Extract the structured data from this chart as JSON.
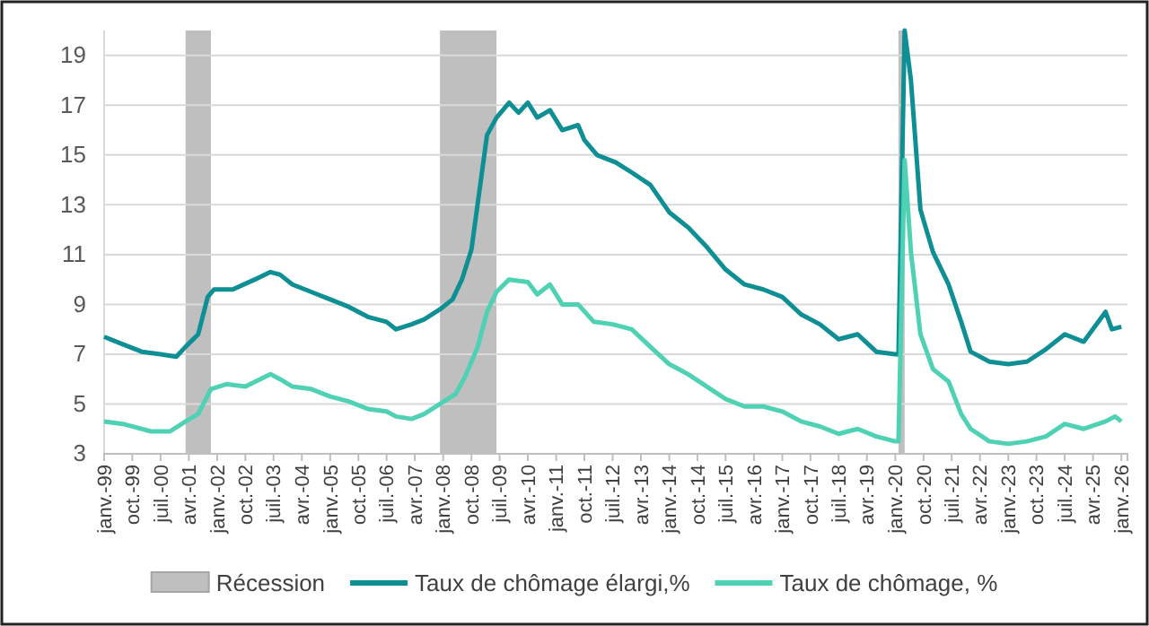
{
  "chart_data": {
    "type": "line",
    "xlim": [
      "1999-01",
      "2026-03"
    ],
    "ylim": [
      3,
      20
    ],
    "yticks": [
      3,
      5,
      7,
      9,
      11,
      13,
      15,
      17,
      19
    ],
    "grid": "y",
    "legend": "bottom",
    "xticks": [
      {
        "value": "1999-01",
        "label": "janv.-99"
      },
      {
        "value": "1999-10",
        "label": "oct.-99"
      },
      {
        "value": "2000-07",
        "label": "juil.-00"
      },
      {
        "value": "2001-04",
        "label": "avr.-01"
      },
      {
        "value": "2002-01",
        "label": "janv.-02"
      },
      {
        "value": "2002-10",
        "label": "oct.-02"
      },
      {
        "value": "2003-07",
        "label": "juil.-03"
      },
      {
        "value": "2004-04",
        "label": "avr.-04"
      },
      {
        "value": "2005-01",
        "label": "janv.-05"
      },
      {
        "value": "2005-10",
        "label": "oct.-05"
      },
      {
        "value": "2006-07",
        "label": "juil.-06"
      },
      {
        "value": "2007-04",
        "label": "avr.-07"
      },
      {
        "value": "2008-01",
        "label": "janv.-08"
      },
      {
        "value": "2008-10",
        "label": "oct.-08"
      },
      {
        "value": "2009-07",
        "label": "juil.-09"
      },
      {
        "value": "2010-04",
        "label": "avr.-10"
      },
      {
        "value": "2011-01",
        "label": "janv.-11"
      },
      {
        "value": "2011-10",
        "label": "oct.-11"
      },
      {
        "value": "2012-07",
        "label": "juil.-12"
      },
      {
        "value": "2013-04",
        "label": "avr.-13"
      },
      {
        "value": "2014-01",
        "label": "janv.-14"
      },
      {
        "value": "2014-10",
        "label": "oct.-14"
      },
      {
        "value": "2015-07",
        "label": "juil.-15"
      },
      {
        "value": "2016-04",
        "label": "avr.-16"
      },
      {
        "value": "2017-01",
        "label": "janv.-17"
      },
      {
        "value": "2017-10",
        "label": "oct.-17"
      },
      {
        "value": "2018-07",
        "label": "juil.-18"
      },
      {
        "value": "2019-04",
        "label": "avr.-19"
      },
      {
        "value": "2020-01",
        "label": "janv.-20"
      },
      {
        "value": "2020-10",
        "label": "oct.-20"
      },
      {
        "value": "2021-07",
        "label": "juil.-21"
      },
      {
        "value": "2022-04",
        "label": "avr.-22"
      },
      {
        "value": "2023-01",
        "label": "janv.-23"
      },
      {
        "value": "2023-10",
        "label": "oct.-23"
      },
      {
        "value": "2024-07",
        "label": "juil.-24"
      },
      {
        "value": "2025-04",
        "label": "avr.-25"
      },
      {
        "value": "2026-01",
        "label": "janv.-26"
      }
    ],
    "bands": [
      {
        "axis": "x",
        "from": "2001-03",
        "to": "2001-11",
        "label": "Récession",
        "color": "#bfbfbf"
      },
      {
        "axis": "x",
        "from": "2007-12",
        "to": "2009-06",
        "color": "#bfbfbf"
      },
      {
        "axis": "x",
        "from": "2020-02",
        "to": "2020-04",
        "color": "#bfbfbf"
      }
    ],
    "series": [
      {
        "name": "Taux de chômage élargi,%",
        "color": "#0e8f94",
        "x": [
          "1999-01",
          "1999-07",
          "2000-01",
          "2000-07",
          "2000-12",
          "2001-03",
          "2001-07",
          "2001-10",
          "2001-12",
          "2002-06",
          "2003-01",
          "2003-06",
          "2003-09",
          "2004-01",
          "2004-07",
          "2005-01",
          "2005-07",
          "2006-01",
          "2006-07",
          "2006-10",
          "2007-03",
          "2007-07",
          "2007-12",
          "2008-04",
          "2008-07",
          "2008-10",
          "2009-01",
          "2009-03",
          "2009-06",
          "2009-10",
          "2010-01",
          "2010-04",
          "2010-07",
          "2010-11",
          "2011-03",
          "2011-08",
          "2011-10",
          "2012-02",
          "2012-08",
          "2013-01",
          "2013-07",
          "2014-01",
          "2014-07",
          "2015-01",
          "2015-07",
          "2016-01",
          "2016-07",
          "2017-01",
          "2017-07",
          "2018-01",
          "2018-07",
          "2019-01",
          "2019-07",
          "2020-01",
          "2020-02",
          "2020-04",
          "2020-06",
          "2020-09",
          "2021-01",
          "2021-06",
          "2021-10",
          "2022-01",
          "2022-07",
          "2023-01",
          "2023-07",
          "2024-01",
          "2024-07",
          "2025-01",
          "2025-08",
          "2025-10",
          "2026-01"
        ],
        "values": [
          7.7,
          7.4,
          7.1,
          7.0,
          6.9,
          7.3,
          7.8,
          9.3,
          9.6,
          9.6,
          10.0,
          10.3,
          10.2,
          9.8,
          9.5,
          9.2,
          8.9,
          8.5,
          8.3,
          8.0,
          8.2,
          8.4,
          8.8,
          9.2,
          10.0,
          11.2,
          14.0,
          15.8,
          16.5,
          17.1,
          16.7,
          17.1,
          16.5,
          16.8,
          16.0,
          16.2,
          15.6,
          15.0,
          14.7,
          14.3,
          13.8,
          12.7,
          12.1,
          11.3,
          10.4,
          9.8,
          9.6,
          9.3,
          8.6,
          8.2,
          7.6,
          7.8,
          7.1,
          7.0,
          7.0,
          20,
          18.0,
          12.8,
          11.1,
          9.8,
          8.3,
          7.1,
          6.7,
          6.6,
          6.7,
          7.2,
          7.8,
          7.5,
          8.7,
          8.0,
          8.1
        ]
      },
      {
        "name": "Taux de chômage, %",
        "color": "#4fd1b4",
        "x": [
          "1999-01",
          "1999-07",
          "2000-04",
          "2000-10",
          "2001-03",
          "2001-07",
          "2001-11",
          "2002-04",
          "2002-10",
          "2003-06",
          "2003-09",
          "2004-01",
          "2004-07",
          "2005-01",
          "2005-07",
          "2006-01",
          "2006-07",
          "2006-10",
          "2007-03",
          "2007-07",
          "2007-12",
          "2008-05",
          "2008-08",
          "2008-12",
          "2009-03",
          "2009-06",
          "2009-10",
          "2010-04",
          "2010-07",
          "2010-11",
          "2011-03",
          "2011-08",
          "2012-01",
          "2012-07",
          "2013-01",
          "2013-07",
          "2014-01",
          "2014-07",
          "2015-01",
          "2015-07",
          "2016-01",
          "2016-07",
          "2017-01",
          "2017-07",
          "2018-01",
          "2018-07",
          "2019-01",
          "2019-07",
          "2020-01",
          "2020-02",
          "2020-04",
          "2020-06",
          "2020-09",
          "2021-01",
          "2021-06",
          "2021-10",
          "2022-01",
          "2022-07",
          "2023-01",
          "2023-07",
          "2024-01",
          "2024-07",
          "2025-01",
          "2025-08",
          "2025-11",
          "2026-01"
        ],
        "values": [
          4.3,
          4.2,
          3.9,
          3.9,
          4.3,
          4.6,
          5.6,
          5.8,
          5.7,
          6.2,
          6.0,
          5.7,
          5.6,
          5.3,
          5.1,
          4.8,
          4.7,
          4.5,
          4.4,
          4.6,
          5.0,
          5.4,
          6.1,
          7.3,
          8.7,
          9.5,
          10.0,
          9.9,
          9.4,
          9.8,
          9.0,
          9.0,
          8.3,
          8.2,
          8.0,
          7.3,
          6.6,
          6.2,
          5.7,
          5.2,
          4.9,
          4.9,
          4.7,
          4.3,
          4.1,
          3.8,
          4.0,
          3.7,
          3.5,
          3.5,
          14.8,
          11.1,
          7.8,
          6.4,
          5.9,
          4.6,
          4.0,
          3.5,
          3.4,
          3.5,
          3.7,
          4.2,
          4.0,
          4.3,
          4.5,
          4.3
        ]
      }
    ]
  }
}
